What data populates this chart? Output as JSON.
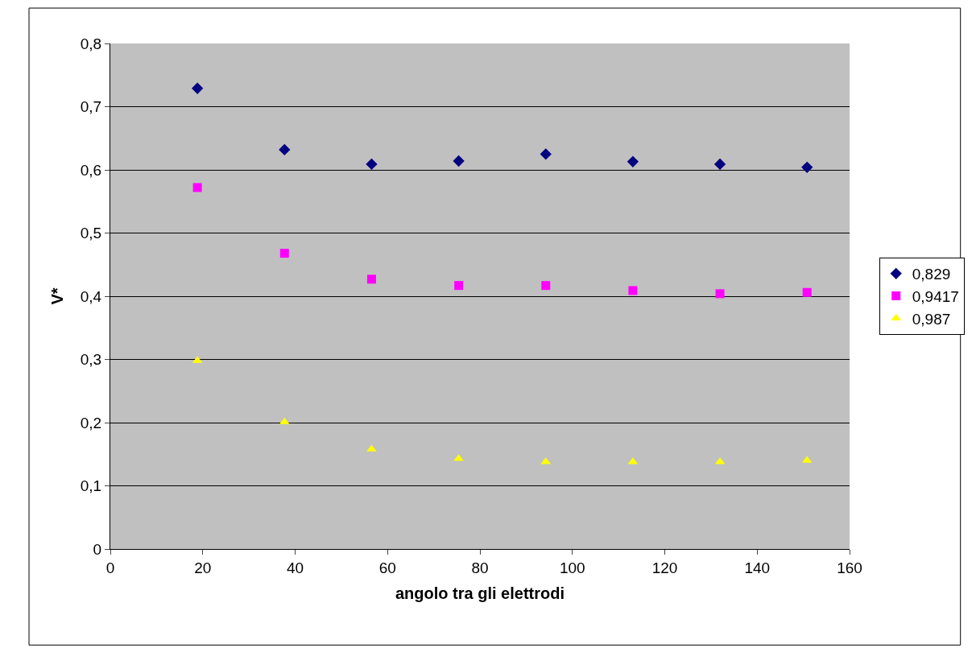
{
  "chart_data": {
    "type": "scatter",
    "xlabel": "angolo tra gli elettrodi",
    "ylabel": "V*",
    "xlim": [
      0,
      160
    ],
    "xticks": [
      0,
      20,
      40,
      60,
      80,
      100,
      120,
      140,
      160
    ],
    "ylim": [
      0,
      0.8
    ],
    "yticks": [
      {
        "value": 0,
        "label": "0"
      },
      {
        "value": 0.1,
        "label": "0,1"
      },
      {
        "value": 0.2,
        "label": "0,2"
      },
      {
        "value": 0.3,
        "label": "0,3"
      },
      {
        "value": 0.4,
        "label": "0,4"
      },
      {
        "value": 0.5,
        "label": "0,5"
      },
      {
        "value": 0.6,
        "label": "0,6"
      },
      {
        "value": 0.7,
        "label": "0,7"
      },
      {
        "value": 0.8,
        "label": "0,8"
      }
    ],
    "grid": "y",
    "legend": "right",
    "x": [
      18.85,
      37.7,
      56.55,
      75.4,
      94.25,
      113.1,
      131.95,
      150.8
    ],
    "series": [
      {
        "name": "0,829",
        "color": "#000080",
        "marker": "diamond",
        "values": [
          0.729,
          0.632,
          0.609,
          0.614,
          0.625,
          0.613,
          0.609,
          0.604
        ]
      },
      {
        "name": "0,9417",
        "color": "#ff00ff",
        "marker": "square",
        "values": [
          0.572,
          0.468,
          0.427,
          0.417,
          0.417,
          0.409,
          0.404,
          0.406
        ]
      },
      {
        "name": "0,987",
        "color": "#ffff00",
        "marker": "triangle",
        "values": [
          0.298,
          0.201,
          0.158,
          0.143,
          0.138,
          0.138,
          0.138,
          0.14
        ]
      }
    ]
  }
}
